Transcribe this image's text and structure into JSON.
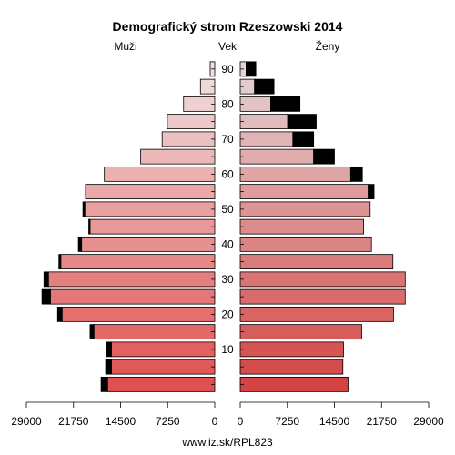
{
  "chart_data": {
    "type": "population-pyramid",
    "title": "Demografický strom Rzeszowski 2014",
    "left_header": "Muži",
    "center_header": "Vek",
    "right_header": "Ženy",
    "footer": "www.iz.sk/RPL823",
    "x_ticks": [
      0,
      7250,
      14500,
      21750,
      29000
    ],
    "x_tick_labels": [
      "0",
      "7250",
      "14500",
      "21750",
      "29000"
    ],
    "xlim": [
      0,
      29000
    ],
    "age_groups": [
      "0-4",
      "5-9",
      "10-14",
      "15-19",
      "20-24",
      "25-29",
      "30-34",
      "35-39",
      "40-44",
      "45-49",
      "50-54",
      "55-59",
      "60-64",
      "65-69",
      "70-74",
      "75-79",
      "80-84",
      "85-89",
      "90+"
    ],
    "age_tick_labels": [
      "10",
      "20",
      "30",
      "40",
      "50",
      "60",
      "70",
      "80",
      "90"
    ],
    "age_tick_groups": [
      2,
      4,
      6,
      8,
      10,
      12,
      14,
      16,
      18
    ],
    "series": [
      {
        "name": "Muži",
        "base": [
          16500,
          15900,
          15900,
          18600,
          23500,
          25300,
          25600,
          23700,
          20500,
          19200,
          20000,
          19900,
          17000,
          11400,
          8100,
          7300,
          4800,
          2200,
          700
        ],
        "excess": [
          1000,
          900,
          800,
          600,
          700,
          1300,
          700,
          300,
          500,
          200,
          300,
          0,
          0,
          0,
          0,
          0,
          0,
          0,
          0
        ]
      },
      {
        "name": "Ženy",
        "base": [
          16600,
          15800,
          15900,
          18700,
          23600,
          25400,
          25400,
          23500,
          20200,
          19000,
          20000,
          19700,
          17000,
          11300,
          8100,
          7300,
          4700,
          2200,
          900
        ],
        "excess": [
          0,
          0,
          0,
          0,
          0,
          0,
          0,
          0,
          0,
          0,
          0,
          900,
          1800,
          3200,
          3200,
          4400,
          4500,
          3000,
          1500
        ]
      }
    ],
    "colors": {
      "excess": "#000000",
      "outline": "#000000",
      "young": "#e05050",
      "old": "#f0e0e0"
    }
  }
}
